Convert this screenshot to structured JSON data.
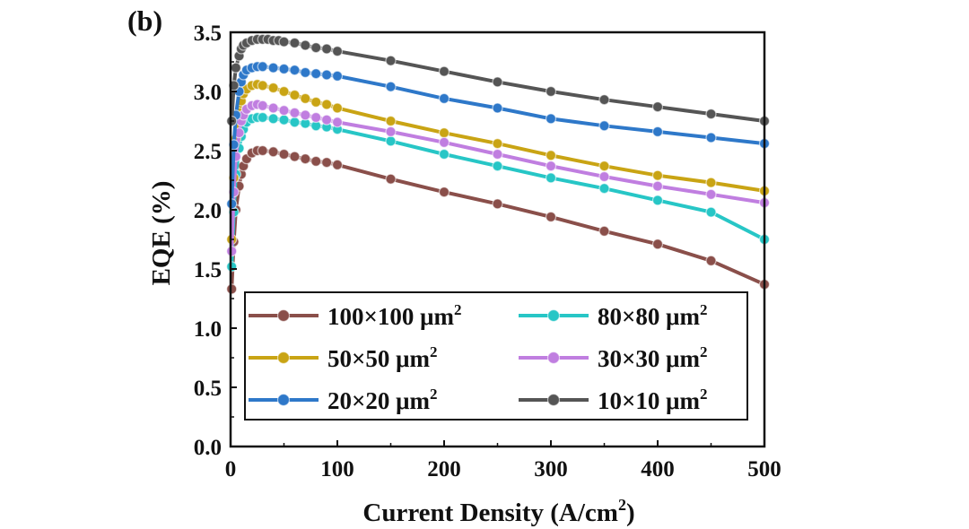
{
  "chart_data": {
    "type": "line",
    "panel_label": "(b)",
    "xlabel": "Current Density (A/cm",
    "xlabel_sup": "2",
    "xlabel_end": ")",
    "ylabel": "EQE (%)",
    "xlim": [
      0,
      500
    ],
    "ylim": [
      0,
      3.5
    ],
    "x_ticks": [
      0,
      100,
      200,
      300,
      400,
      500
    ],
    "x_tick_labels": [
      "0",
      "100",
      "200",
      "300",
      "400",
      "500"
    ],
    "y_ticks": [
      0,
      0.5,
      1.0,
      1.5,
      2.0,
      2.5,
      3.0,
      3.5
    ],
    "y_tick_labels": [
      "0.0",
      "0.5",
      "1.0",
      "1.5",
      "2.0",
      "2.5",
      "3.0",
      "3.5"
    ],
    "grid": false,
    "legend_position": "bottom",
    "series": [
      {
        "name": "100×100 μm",
        "name_sup": "2",
        "color": "#8a4f4a",
        "x": [
          1,
          3,
          5,
          8,
          10,
          12,
          15,
          20,
          25,
          30,
          40,
          50,
          60,
          70,
          80,
          90,
          100,
          150,
          200,
          250,
          300,
          350,
          400,
          450,
          500
        ],
        "y": [
          1.33,
          1.73,
          2.0,
          2.2,
          2.3,
          2.37,
          2.43,
          2.48,
          2.5,
          2.5,
          2.49,
          2.47,
          2.45,
          2.43,
          2.41,
          2.4,
          2.38,
          2.26,
          2.15,
          2.05,
          1.94,
          1.82,
          1.71,
          1.57,
          1.37
        ]
      },
      {
        "name": "80×80 μm",
        "name_sup": "2",
        "color": "#27c6c6",
        "x": [
          1,
          3,
          5,
          8,
          10,
          12,
          15,
          20,
          25,
          30,
          40,
          50,
          60,
          70,
          80,
          90,
          100,
          150,
          200,
          250,
          300,
          350,
          400,
          450,
          500
        ],
        "y": [
          1.52,
          1.98,
          2.3,
          2.52,
          2.62,
          2.68,
          2.74,
          2.77,
          2.78,
          2.78,
          2.77,
          2.76,
          2.74,
          2.73,
          2.71,
          2.7,
          2.68,
          2.58,
          2.47,
          2.37,
          2.27,
          2.18,
          2.08,
          1.98,
          1.75
        ]
      },
      {
        "name": "50×50 μm",
        "name_sup": "2",
        "color": "#c9a414",
        "x": [
          1,
          3,
          5,
          8,
          10,
          12,
          15,
          20,
          25,
          30,
          40,
          50,
          60,
          70,
          80,
          90,
          100,
          150,
          200,
          250,
          300,
          350,
          400,
          450,
          500
        ],
        "y": [
          1.75,
          2.27,
          2.6,
          2.82,
          2.92,
          2.98,
          3.02,
          3.05,
          3.06,
          3.05,
          3.03,
          3.0,
          2.97,
          2.94,
          2.91,
          2.89,
          2.86,
          2.75,
          2.65,
          2.56,
          2.46,
          2.37,
          2.29,
          2.23,
          2.16
        ]
      },
      {
        "name": "30×30 μm",
        "name_sup": "2",
        "color": "#c07ee0",
        "x": [
          1,
          3,
          5,
          8,
          10,
          12,
          15,
          20,
          25,
          30,
          40,
          50,
          60,
          70,
          80,
          90,
          100,
          150,
          200,
          250,
          300,
          350,
          400,
          450,
          500
        ],
        "y": [
          1.65,
          2.15,
          2.45,
          2.65,
          2.75,
          2.8,
          2.85,
          2.88,
          2.89,
          2.88,
          2.86,
          2.84,
          2.82,
          2.8,
          2.78,
          2.76,
          2.74,
          2.66,
          2.57,
          2.47,
          2.37,
          2.28,
          2.2,
          2.13,
          2.06
        ]
      },
      {
        "name": "20×20 μm",
        "name_sup": "2",
        "color": "#2e78c9",
        "x": [
          1,
          3,
          5,
          8,
          10,
          12,
          15,
          20,
          25,
          30,
          40,
          50,
          60,
          70,
          80,
          90,
          100,
          150,
          200,
          250,
          300,
          350,
          400,
          450,
          500
        ],
        "y": [
          2.05,
          2.55,
          2.8,
          3.0,
          3.08,
          3.14,
          3.18,
          3.2,
          3.21,
          3.21,
          3.2,
          3.19,
          3.18,
          3.16,
          3.15,
          3.14,
          3.13,
          3.04,
          2.94,
          2.86,
          2.77,
          2.71,
          2.66,
          2.61,
          2.56
        ]
      },
      {
        "name": "10×10 μm",
        "name_sup": "2",
        "color": "#555555",
        "x": [
          1,
          3,
          5,
          8,
          10,
          12,
          15,
          20,
          25,
          30,
          35,
          40,
          45,
          50,
          60,
          70,
          80,
          90,
          100,
          150,
          200,
          250,
          300,
          350,
          400,
          450,
          500
        ],
        "y": [
          2.75,
          3.05,
          3.2,
          3.3,
          3.36,
          3.39,
          3.41,
          3.43,
          3.44,
          3.44,
          3.44,
          3.43,
          3.43,
          3.42,
          3.41,
          3.39,
          3.37,
          3.36,
          3.34,
          3.26,
          3.17,
          3.08,
          3.0,
          2.93,
          2.87,
          2.81,
          2.75
        ]
      }
    ],
    "legend_columns": [
      [
        0,
        2,
        4
      ],
      [
        1,
        3,
        5
      ]
    ]
  }
}
